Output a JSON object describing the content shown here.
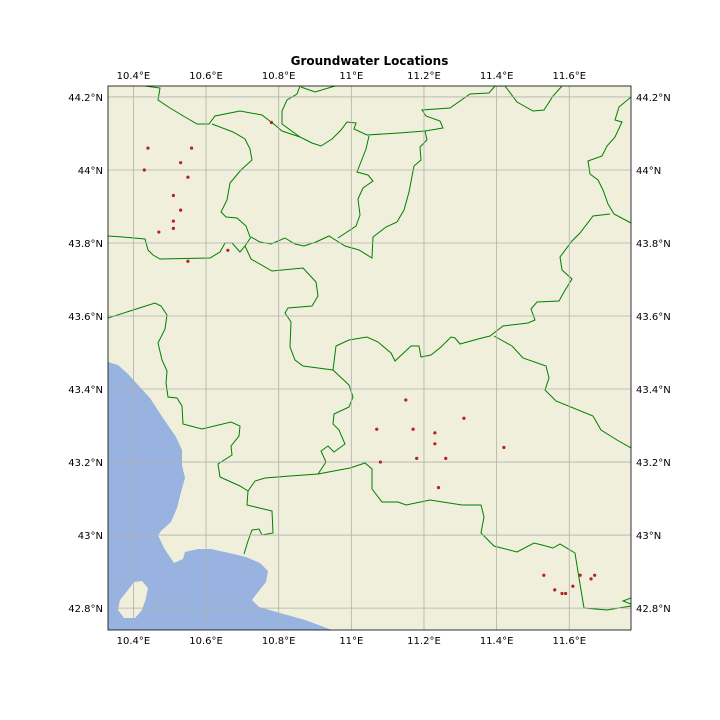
{
  "title": "Groundwater Locations",
  "colors": {
    "land": "#efefdb",
    "water": "#99b3e0",
    "borders": "#008000",
    "grid": "#b0b0b0",
    "points": "#b22222"
  },
  "map": {
    "lon_range": [
      10.33,
      11.77
    ],
    "lat_range": [
      42.74,
      44.23
    ],
    "lon_ticks": [
      10.4,
      10.6,
      10.8,
      11.0,
      11.2,
      11.4,
      11.6
    ],
    "lat_ticks": [
      42.8,
      43.0,
      43.2,
      43.4,
      43.6,
      43.8,
      44.0,
      44.2
    ],
    "lon_labels": [
      "10.4°E",
      "10.6°E",
      "10.8°E",
      "11°E",
      "11.2°E",
      "11.4°E",
      "11.6°E"
    ],
    "lat_labels": [
      "42.8°N",
      "43°N",
      "43.2°N",
      "43.4°N",
      "43.6°N",
      "43.8°N",
      "44°N",
      "44.2°N"
    ]
  },
  "locations": [
    {
      "lon": 10.44,
      "lat": 44.06
    },
    {
      "lon": 10.56,
      "lat": 44.06
    },
    {
      "lon": 10.53,
      "lat": 44.02
    },
    {
      "lon": 10.43,
      "lat": 44.0
    },
    {
      "lon": 10.55,
      "lat": 43.98
    },
    {
      "lon": 10.51,
      "lat": 43.93
    },
    {
      "lon": 10.53,
      "lat": 43.89
    },
    {
      "lon": 10.51,
      "lat": 43.86
    },
    {
      "lon": 10.51,
      "lat": 43.84
    },
    {
      "lon": 10.47,
      "lat": 43.83
    },
    {
      "lon": 10.66,
      "lat": 43.78
    },
    {
      "lon": 10.55,
      "lat": 43.75
    },
    {
      "lon": 10.78,
      "lat": 44.13
    },
    {
      "lon": 11.15,
      "lat": 43.37
    },
    {
      "lon": 11.31,
      "lat": 43.32
    },
    {
      "lon": 11.07,
      "lat": 43.29
    },
    {
      "lon": 11.17,
      "lat": 43.29
    },
    {
      "lon": 11.23,
      "lat": 43.28
    },
    {
      "lon": 11.23,
      "lat": 43.25
    },
    {
      "lon": 11.42,
      "lat": 43.24
    },
    {
      "lon": 11.26,
      "lat": 43.21
    },
    {
      "lon": 11.18,
      "lat": 43.21
    },
    {
      "lon": 11.08,
      "lat": 43.2
    },
    {
      "lon": 11.24,
      "lat": 43.13
    },
    {
      "lon": 11.53,
      "lat": 42.89
    },
    {
      "lon": 11.63,
      "lat": 42.89
    },
    {
      "lon": 11.67,
      "lat": 42.89
    },
    {
      "lon": 11.66,
      "lat": 42.88
    },
    {
      "lon": 11.61,
      "lat": 42.86
    },
    {
      "lon": 11.56,
      "lat": 42.85
    },
    {
      "lon": 11.59,
      "lat": 42.84
    },
    {
      "lon": 11.58,
      "lat": 42.84
    }
  ]
}
